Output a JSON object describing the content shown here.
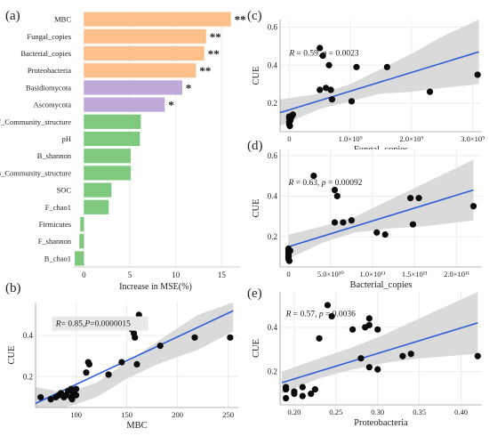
{
  "chart_data": [
    {
      "panel_letter": "(a)",
      "type": "bar",
      "orientation": "horizontal",
      "xlabel": "Increase in MSE(%)",
      "xlim": [
        -1.2,
        17
      ],
      "xticks": [
        0,
        5,
        10,
        15
      ],
      "categories": [
        "MBC",
        "Fungal_copies",
        "Bacterial_copies",
        "Proteobacteria",
        "Basidiomycota",
        "Ascomycota",
        "F_Community_structure",
        "pH",
        "B_shannon",
        "B_Community_structure",
        "SOC",
        "F_chao1",
        "Firmicutes",
        "F_shannon",
        "B_chao1"
      ],
      "values": [
        16.0,
        13.3,
        13.1,
        12.2,
        10.7,
        8.8,
        6.2,
        6.1,
        5.1,
        5.1,
        3.0,
        2.7,
        -0.4,
        -0.5,
        -1.0
      ],
      "significance": [
        "**",
        "**",
        "**",
        "**",
        "*",
        "*",
        "",
        "",
        "",
        "",
        "",
        "",
        "",
        "",
        ""
      ],
      "group_colors": [
        "#FDC08B",
        "#FDC08B",
        "#FDC08B",
        "#FDC08B",
        "#BFA9DB",
        "#BFA9DB",
        "#7EC97E",
        "#7EC97E",
        "#7EC97E",
        "#7EC97E",
        "#7EC97E",
        "#7EC97E",
        "#7EC97E",
        "#7EC97E",
        "#7EC97E"
      ]
    },
    {
      "panel_letter": "(b)",
      "type": "scatter",
      "xlabel": "MBC",
      "ylabel": "CUE",
      "xlim": [
        60,
        260
      ],
      "ylim": [
        0.05,
        0.56
      ],
      "xticks": [
        100,
        150,
        200,
        250
      ],
      "yticks": [
        0.2,
        0.4
      ],
      "annotation": {
        "r_label": "R",
        "r_value": "= 0.85,",
        "p_label": "P",
        "p_value": "=0.0000015"
      },
      "points": [
        [
          65,
          0.1
        ],
        [
          75,
          0.09
        ],
        [
          80,
          0.1
        ],
        [
          83,
          0.11
        ],
        [
          85,
          0.12
        ],
        [
          88,
          0.1
        ],
        [
          90,
          0.11
        ],
        [
          92,
          0.13
        ],
        [
          95,
          0.1
        ],
        [
          95,
          0.14
        ],
        [
          96,
          0.09
        ],
        [
          97,
          0.12
        ],
        [
          98,
          0.13
        ],
        [
          100,
          0.14
        ],
        [
          100,
          0.11
        ],
        [
          110,
          0.22
        ],
        [
          112,
          0.27
        ],
        [
          113,
          0.26
        ],
        [
          132,
          0.21
        ],
        [
          145,
          0.27
        ],
        [
          155,
          0.43
        ],
        [
          157,
          0.41
        ],
        [
          158,
          0.39
        ],
        [
          160,
          0.47
        ],
        [
          162,
          0.5
        ],
        [
          160,
          0.26
        ],
        [
          183,
          0.35
        ],
        [
          217,
          0.39
        ],
        [
          252,
          0.39
        ]
      ],
      "fit": {
        "x": [
          60,
          255
        ],
        "y": [
          0.07,
          0.52
        ]
      },
      "band_upper": [
        0.15,
        0.12,
        0.17,
        0.27,
        0.37,
        0.5,
        0.61
      ],
      "band_lower": [
        0.0,
        0.03,
        0.1,
        0.19,
        0.26,
        0.33,
        0.42
      ],
      "band_x": [
        60,
        90,
        120,
        150,
        180,
        220,
        255
      ],
      "point_color": "#0a0a0a",
      "line_color": "#2e5fd6",
      "band_color": "#d3d3d3"
    },
    {
      "panel_letter": "(c)",
      "type": "scatter",
      "xlabel": "Fungal_copies",
      "ylabel": "CUE",
      "xlim": [
        -150000000.0,
        3150000000.0
      ],
      "ylim": [
        0.05,
        0.64
      ],
      "xticks": [
        0,
        1000000000.0,
        2000000000.0,
        3000000000.0
      ],
      "xtick_labels": [
        "0",
        "1.0×10⁹",
        "2.0×10⁹",
        "3.0×10⁹"
      ],
      "yticks": [
        0.2,
        0.4,
        0.6
      ],
      "annotation": {
        "r_label": "R",
        "r_value": " = 0.59, ",
        "p_label": "p",
        "p_value": " = 0.0023"
      },
      "points": [
        [
          0,
          0.1
        ],
        [
          0,
          0.12
        ],
        [
          0,
          0.13
        ],
        [
          0,
          0.09
        ],
        [
          20000000.0,
          0.11
        ],
        [
          40000000.0,
          0.13
        ],
        [
          60000000.0,
          0.14
        ],
        [
          10000000.0,
          0.08
        ],
        [
          500000000.0,
          0.49
        ],
        [
          500000000.0,
          0.27
        ],
        [
          550000000.0,
          0.45
        ],
        [
          650000000.0,
          0.4
        ],
        [
          600000000.0,
          0.28
        ],
        [
          680000000.0,
          0.27
        ],
        [
          700000000.0,
          0.22
        ],
        [
          1100000000.0,
          0.39
        ],
        [
          1020000000.0,
          0.21
        ],
        [
          1600000000.0,
          0.39
        ],
        [
          2300000000.0,
          0.26
        ],
        [
          3080000000.0,
          0.35
        ]
      ],
      "fit": {
        "x": [
          -150000000.0,
          3100000000.0
        ],
        "y": [
          0.15,
          0.47
        ]
      },
      "band_x": [
        -150000000.0,
        500000000.0,
        1000000000.0,
        1500000000.0,
        2000000000.0,
        2500000000.0,
        3100000000.0
      ],
      "band_upper": [
        0.22,
        0.25,
        0.3,
        0.38,
        0.46,
        0.55,
        0.64
      ],
      "band_lower": [
        0.08,
        0.17,
        0.21,
        0.25,
        0.26,
        0.28,
        0.3
      ],
      "point_color": "#0a0a0a",
      "line_color": "#2e5fd6",
      "band_color": "#d3d3d3"
    },
    {
      "panel_letter": "(d)",
      "type": "scatter",
      "xlabel": "Bacterial_copies",
      "ylabel": "CUE",
      "xlim": [
        -10000000000.0,
        230000000000.0
      ],
      "ylim": [
        0.05,
        0.63
      ],
      "xticks": [
        0,
        50000000000.0,
        100000000000.0,
        150000000000.0,
        200000000000.0
      ],
      "xtick_labels": [
        "0",
        "5.0×10¹⁰",
        "1.0×10¹¹",
        "1.5×10¹¹",
        "2.0×10¹¹"
      ],
      "yticks": [
        0.2,
        0.4,
        0.6
      ],
      "annotation": {
        "r_label": "R",
        "r_value": " = 0.63, ",
        "p_label": "p",
        "p_value": " = 0.00092"
      },
      "points": [
        [
          0,
          0.1
        ],
        [
          0,
          0.12
        ],
        [
          0,
          0.13
        ],
        [
          0,
          0.14
        ],
        [
          0,
          0.09
        ],
        [
          0,
          0.11
        ],
        [
          1000000000.0,
          0.08
        ],
        [
          2000000000.0,
          0.13
        ],
        [
          30000000000.0,
          0.5
        ],
        [
          55000000000.0,
          0.43
        ],
        [
          58000000000.0,
          0.4
        ],
        [
          55000000000.0,
          0.27
        ],
        [
          65000000000.0,
          0.27
        ],
        [
          75000000000.0,
          0.28
        ],
        [
          105000000000.0,
          0.22
        ],
        [
          115000000000.0,
          0.21
        ],
        [
          145000000000.0,
          0.39
        ],
        [
          155000000000.0,
          0.39
        ],
        [
          148000000000.0,
          0.26
        ],
        [
          220000000000.0,
          0.35
        ]
      ],
      "fit": {
        "x": [
          0,
          220000000000.0
        ],
        "y": [
          0.15,
          0.43
        ]
      },
      "band_x": [
        0,
        40000000000.0,
        80000000000.0,
        120000000000.0,
        160000000000.0,
        220000000000.0
      ],
      "band_upper": [
        0.21,
        0.25,
        0.3,
        0.38,
        0.46,
        0.58
      ],
      "band_lower": [
        0.09,
        0.17,
        0.22,
        0.24,
        0.25,
        0.28
      ],
      "point_color": "#0a0a0a",
      "line_color": "#2e5fd6",
      "band_color": "#d3d3d3"
    },
    {
      "panel_letter": "(e)",
      "type": "scatter",
      "xlabel": "Proteobacteria",
      "ylabel": "CUE",
      "xlim": [
        0.183,
        0.425
      ],
      "ylim": [
        0.05,
        0.56
      ],
      "xticks": [
        0.2,
        0.25,
        0.3,
        0.35,
        0.4
      ],
      "xtick_labels": [
        "0.20",
        "0.25",
        "0.30",
        "0.35",
        "0.40"
      ],
      "yticks": [
        0.2,
        0.4
      ],
      "annotation": {
        "r_label": "R",
        "r_value": " = 0.57, ",
        "p_label": "p",
        "p_value": " = 0.0036"
      },
      "points": [
        [
          0.19,
          0.08
        ],
        [
          0.19,
          0.12
        ],
        [
          0.19,
          0.13
        ],
        [
          0.2,
          0.1
        ],
        [
          0.2,
          0.11
        ],
        [
          0.21,
          0.09
        ],
        [
          0.21,
          0.13
        ],
        [
          0.22,
          0.1
        ],
        [
          0.225,
          0.12
        ],
        [
          0.23,
          0.35
        ],
        [
          0.24,
          0.5
        ],
        [
          0.245,
          0.45
        ],
        [
          0.27,
          0.39
        ],
        [
          0.28,
          0.26
        ],
        [
          0.285,
          0.4
        ],
        [
          0.29,
          0.44
        ],
        [
          0.29,
          0.41
        ],
        [
          0.3,
          0.39
        ],
        [
          0.29,
          0.22
        ],
        [
          0.3,
          0.21
        ],
        [
          0.33,
          0.27
        ],
        [
          0.34,
          0.28
        ],
        [
          0.42,
          0.27
        ]
      ],
      "fit": {
        "x": [
          0.185,
          0.42
        ],
        "y": [
          0.15,
          0.42
        ]
      },
      "band_x": [
        0.185,
        0.23,
        0.27,
        0.31,
        0.35,
        0.42
      ],
      "band_upper": [
        0.2,
        0.26,
        0.31,
        0.37,
        0.44,
        0.56
      ],
      "band_lower": [
        0.1,
        0.17,
        0.21,
        0.24,
        0.26,
        0.28
      ],
      "point_color": "#0a0a0a",
      "line_color": "#2e5fd6",
      "band_color": "#d3d3d3"
    }
  ]
}
